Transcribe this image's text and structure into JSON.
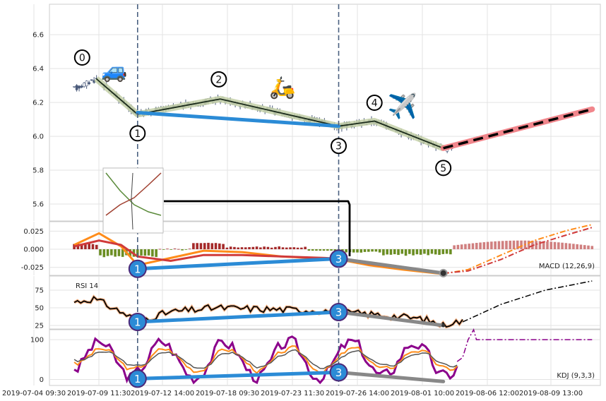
{
  "chart_data": {
    "type": "candlestick",
    "x_tick_labels": [
      "2019-07-04 09:30",
      "2019-07-09 11:30",
      "2019-07-12 14:00",
      "2019-07-18 09:30",
      "2019-07-23 11:30",
      "2019-07-26 14:00",
      "2019-08-01 10:00",
      "2019-08-06 12:00",
      "2019-08-09 13:00"
    ],
    "price_panel": {
      "y_ticks": [
        "6.6",
        "6.4",
        "6.2",
        "6.0",
        "5.8",
        "5.6"
      ],
      "ylim": [
        5.5,
        6.78
      ],
      "wave_points": [
        {
          "label": "0",
          "x": 0.085,
          "y": 6.34
        },
        {
          "label": "1",
          "x": 0.16,
          "y": 6.13
        },
        {
          "label": "2",
          "x": 0.31,
          "y": 6.22
        },
        {
          "label": "3",
          "x": 0.525,
          "y": 6.06
        },
        {
          "label": "4",
          "x": 0.59,
          "y": 6.09
        },
        {
          "label": "5",
          "x": 0.715,
          "y": 5.93
        }
      ],
      "trend_line": [
        {
          "x": 0.16,
          "y": 6.14
        },
        {
          "x": 0.525,
          "y": 6.06
        }
      ],
      "forecast_line": [
        {
          "x": 0.715,
          "y": 5.93
        },
        {
          "x": 0.985,
          "y": 6.16
        }
      ],
      "icons": [
        "car-emoji",
        "scooter-emoji",
        "airplane-emoji"
      ]
    },
    "macd_panel": {
      "label": "MACD (12,26,9)",
      "y_ticks": [
        "0.025",
        "0.000",
        "-0.025"
      ],
      "ylim": [
        -0.036,
        0.038
      ],
      "divergence_points": [
        {
          "label": "1",
          "x": 0.16,
          "y": -0.027
        },
        {
          "label": "3",
          "x": 0.525,
          "y": -0.013
        }
      ]
    },
    "rsi_panel": {
      "label": "RSI 14",
      "y_ticks": [
        "75",
        "50",
        "25"
      ],
      "ylim": [
        20,
        95
      ],
      "divergence_points": [
        {
          "label": "1",
          "x": 0.16,
          "y": 30
        },
        {
          "label": "3",
          "x": 0.525,
          "y": 44
        }
      ]
    },
    "kdj_panel": {
      "label": "KDJ (9,3,3)",
      "y_ticks": [
        "100",
        "0"
      ],
      "ylim": [
        -15,
        125
      ],
      "divergence_points": [
        {
          "label": "1",
          "x": 0.16,
          "y": 2
        },
        {
          "label": "3",
          "x": 0.525,
          "y": 18
        }
      ]
    },
    "vertical_markers": [
      0.16,
      0.525
    ],
    "colors": {
      "candle": "#4a5a7a",
      "wave_line": "#1a2a1a",
      "wave_halo": "#c4d0a8",
      "trend_blue": "#2b8bd6",
      "forecast_red": "#f07a80",
      "macd_orange": "#ff8c1a",
      "macd_red": "#d03a3a",
      "hist_green": "#6b8e23",
      "hist_red": "#a52a2a",
      "hist_pink": "#d08080",
      "kdj_purple": "#8b008b",
      "divergence_gray": "#888888"
    }
  }
}
